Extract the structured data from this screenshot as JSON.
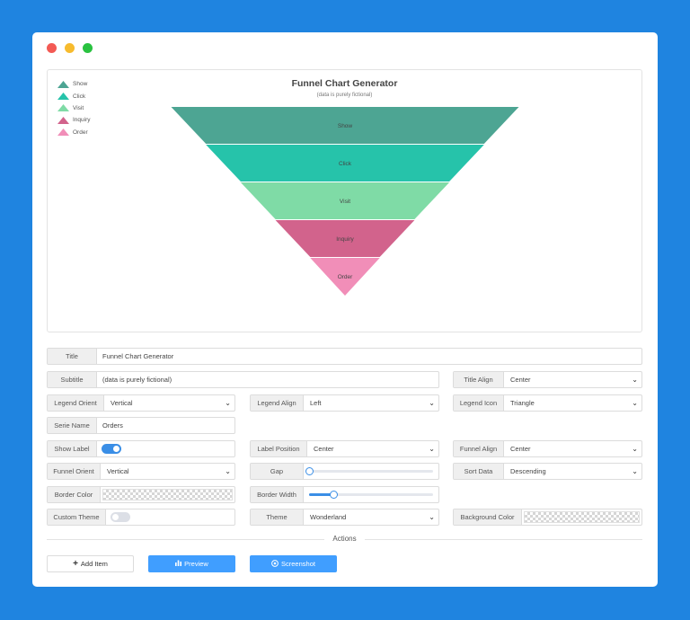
{
  "chart": {
    "title": "Funnel Chart Generator",
    "subtitle": "(data is purely fictional)",
    "legend": [
      {
        "name": "Show",
        "color": "#4da593"
      },
      {
        "name": "Click",
        "color": "#26c3aa"
      },
      {
        "name": "Visit",
        "color": "#7fdba6"
      },
      {
        "name": "Inquiry",
        "color": "#d2638c"
      },
      {
        "name": "Order",
        "color": "#f18eb8"
      }
    ]
  },
  "chart_data": {
    "type": "funnel",
    "categories": [
      "Show",
      "Click",
      "Visit",
      "Inquiry",
      "Order"
    ],
    "values": [
      100,
      80,
      60,
      40,
      20
    ],
    "colors": [
      "#4da593",
      "#26c3aa",
      "#7fdba6",
      "#d2638c",
      "#f18eb8"
    ],
    "title": "Funnel Chart Generator",
    "subtitle": "(data is purely fictional)",
    "legend_position": "top-left",
    "sort": "descending",
    "orient": "vertical",
    "align": "center",
    "label_position": "center"
  },
  "form": {
    "title": {
      "label": "Title",
      "value": "Funnel Chart Generator"
    },
    "subtitle": {
      "label": "Subtitle",
      "value": "(data is purely fictional)"
    },
    "title_align": {
      "label": "Title Align",
      "value": "Center"
    },
    "legend_orient": {
      "label": "Legend Orient",
      "value": "Vertical"
    },
    "legend_align": {
      "label": "Legend Align",
      "value": "Left"
    },
    "legend_icon": {
      "label": "Legend Icon",
      "value": "Triangle"
    },
    "serie_name": {
      "label": "Serie Name",
      "value": "Orders"
    },
    "show_label": {
      "label": "Show Label",
      "on": true
    },
    "label_position": {
      "label": "Label Position",
      "value": "Center"
    },
    "funnel_align": {
      "label": "Funnel Align",
      "value": "Center"
    },
    "funnel_orient": {
      "label": "Funnel Orient",
      "value": "Vertical"
    },
    "gap": {
      "label": "Gap",
      "value": 0
    },
    "sort_data": {
      "label": "Sort Data",
      "value": "Descending"
    },
    "border_color": {
      "label": "Border Color"
    },
    "border_width": {
      "label": "Border Width",
      "value": 0.2
    },
    "custom_theme": {
      "label": "Custom Theme",
      "on": false
    },
    "theme": {
      "label": "Theme",
      "value": "Wonderland"
    },
    "background_color": {
      "label": "Background Color"
    }
  },
  "actions": {
    "heading": "Actions",
    "add_item": "Add Item",
    "preview": "Preview",
    "screenshot": "Screenshot"
  }
}
